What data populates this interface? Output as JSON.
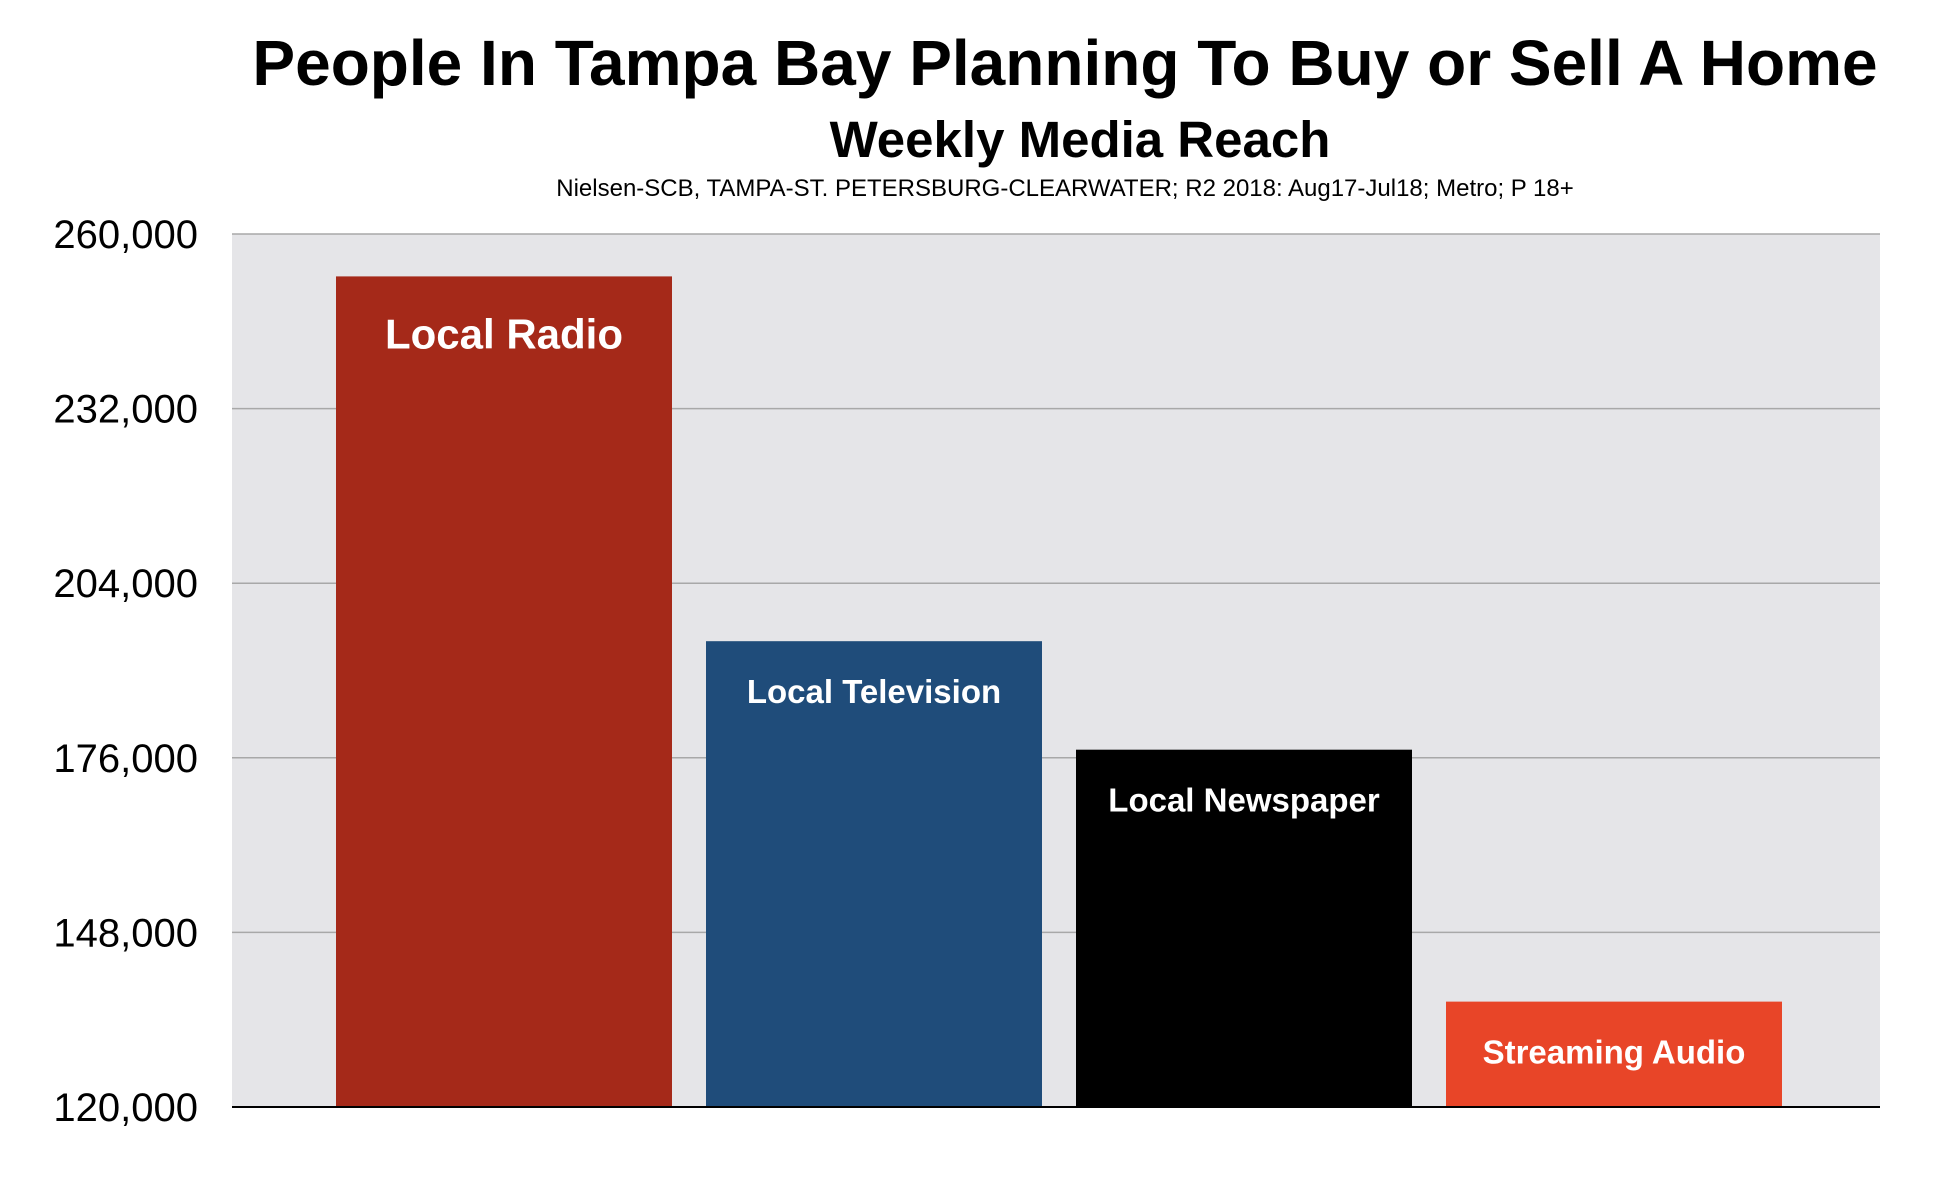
{
  "header": {
    "title": "People In Tampa Bay Planning To Buy or Sell A Home",
    "subtitle": "Weekly Media Reach",
    "source": "Nielsen-SCB, TAMPA-ST. PETERSBURG-CLEARWATER; R2 2018: Aug17-Jul18; Metro; P 18+"
  },
  "chart_data": {
    "type": "bar",
    "title": "People In Tampa Bay Planning To Buy or Sell A Home",
    "subtitle": "Weekly Media Reach",
    "note": "Nielsen-SCB, TAMPA-ST. PETERSBURG-CLEARWATER; R2 2018: Aug17-Jul18; Metro; P 18+",
    "categories": [
      "Local Radio",
      "Local Television",
      "Local Newspaper",
      "Streaming Audio"
    ],
    "values": [
      253200,
      194700,
      177300,
      136900
    ],
    "colors": [
      "#a52919",
      "#1f4c7a",
      "#000000",
      "#e84528"
    ],
    "label_colors": [
      "#ffffff",
      "#ffffff",
      "#ffffff",
      "#ffffff"
    ],
    "ylim": [
      120000,
      260000
    ],
    "yticks": [
      120000,
      148000,
      176000,
      204000,
      232000,
      260000
    ],
    "ytick_labels": [
      "120,000",
      "148,000",
      "176,000",
      "204,000",
      "232,000",
      "260,000"
    ],
    "xlabel": "",
    "ylabel": "",
    "grid": true,
    "legend": "none",
    "plot_background": "#e5e5e8",
    "gridline_color": "#a8a8a8"
  }
}
